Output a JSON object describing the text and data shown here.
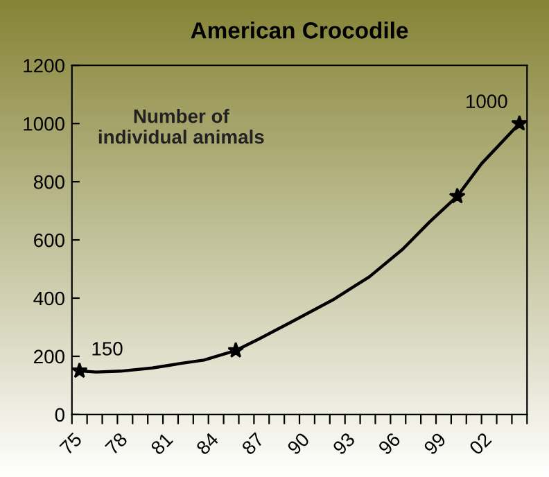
{
  "chart_data": {
    "type": "line",
    "title": "American Crocodile",
    "annotations": [
      "Number of\nindividual animals"
    ],
    "series": [
      {
        "marker": "none",
        "color": "#000000",
        "x": [
          1975.5,
          1976.6,
          1978.2,
          1980.3,
          1982.1,
          1983.7,
          1985.8,
          1987.3,
          1989.5,
          1992.2,
          1994.6,
          1996.8,
          1998.6,
          2000.4,
          2002.0,
          2004.5
        ],
        "values": [
          150,
          146,
          149,
          160,
          175,
          187,
          220,
          259,
          319,
          394,
          473,
          568,
          663,
          750,
          862,
          1000
        ]
      },
      {
        "type": "scatter",
        "marker": "star",
        "color": "#000000",
        "x": [
          1975.5,
          1985.8,
          2000.4,
          2004.5
        ],
        "values": [
          150,
          220,
          750,
          1000
        ],
        "value_labels": [
          "150",
          null,
          null,
          "1000"
        ]
      }
    ],
    "line_style": "solid",
    "grid": false,
    "legend": false,
    "xlim": [
      1975,
      2005
    ],
    "xticks": [
      {
        "value": 1975,
        "label": "75"
      },
      {
        "value": 1976,
        "label": null
      },
      {
        "value": 1977,
        "label": null
      },
      {
        "value": 1978,
        "label": "78"
      },
      {
        "value": 1979,
        "label": null
      },
      {
        "value": 1980,
        "label": null
      },
      {
        "value": 1981,
        "label": "81"
      },
      {
        "value": 1982,
        "label": null
      },
      {
        "value": 1983,
        "label": null
      },
      {
        "value": 1984,
        "label": "84"
      },
      {
        "value": 1985,
        "label": null
      },
      {
        "value": 1986,
        "label": null
      },
      {
        "value": 1987,
        "label": "87"
      },
      {
        "value": 1988,
        "label": null
      },
      {
        "value": 1989,
        "label": null
      },
      {
        "value": 1990,
        "label": "90"
      },
      {
        "value": 1991,
        "label": null
      },
      {
        "value": 1992,
        "label": null
      },
      {
        "value": 1993,
        "label": "93"
      },
      {
        "value": 1994,
        "label": null
      },
      {
        "value": 1995,
        "label": null
      },
      {
        "value": 1996,
        "label": "96"
      },
      {
        "value": 1997,
        "label": null
      },
      {
        "value": 1998,
        "label": null
      },
      {
        "value": 1999,
        "label": "99"
      },
      {
        "value": 2000,
        "label": null
      },
      {
        "value": 2001,
        "label": null
      },
      {
        "value": 2002,
        "label": "02"
      },
      {
        "value": 2003,
        "label": null
      },
      {
        "value": 2004,
        "label": null
      },
      {
        "value": 2005,
        "label": null
      }
    ],
    "ylim": [
      0,
      1200
    ],
    "yticks": [
      0,
      200,
      400,
      600,
      800,
      1000,
      1200
    ]
  }
}
